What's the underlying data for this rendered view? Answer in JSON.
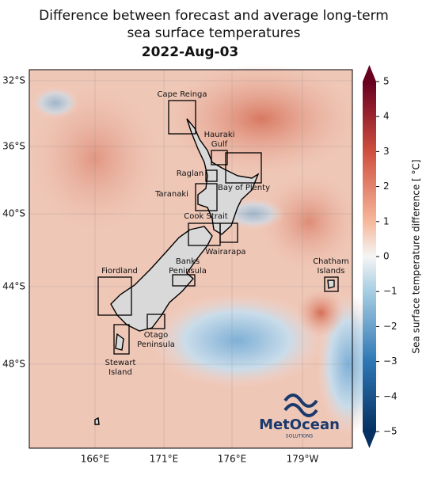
{
  "header": {
    "title_lines": [
      "Difference between forecast and average long-term",
      "sea surface temperatures"
    ],
    "date": "2022-Aug-03"
  },
  "map": {
    "lat_labels": [
      "32°S",
      "36°S",
      "40°S",
      "44°S",
      "48°S"
    ],
    "lon_labels": [
      "166°E",
      "171°E",
      "176°E",
      "179°W"
    ],
    "regions": [
      {
        "label": [
          "Cape Reinga"
        ]
      },
      {
        "label": [
          "Hauraki",
          "Gulf"
        ]
      },
      {
        "label": [
          "Bay of Plenty"
        ]
      },
      {
        "label": [
          "Raglan"
        ]
      },
      {
        "label": [
          "Taranaki"
        ]
      },
      {
        "label": [
          "Cook Strait"
        ]
      },
      {
        "label": [
          "Wairarapa"
        ]
      },
      {
        "label": [
          "Banks",
          "Peninsula"
        ]
      },
      {
        "label": [
          "Fiordland"
        ]
      },
      {
        "label": [
          "Chatham",
          "Islands"
        ]
      },
      {
        "label": [
          "Otago",
          "Peninsula"
        ]
      },
      {
        "label": [
          "Stewart",
          "Island"
        ]
      }
    ],
    "logo": {
      "name": "MetOcean",
      "sub": "SOLUTIONS"
    }
  },
  "colorbar": {
    "label": "Sea surface temperature difference [ °C]",
    "lim": [
      -5,
      5
    ],
    "ticks": [
      {
        "value": -5,
        "label": "−5"
      },
      {
        "value": -4,
        "label": "−4"
      },
      {
        "value": -3,
        "label": "−3"
      },
      {
        "value": -2,
        "label": "−2"
      },
      {
        "value": -1,
        "label": "−1"
      },
      0,
      1,
      2,
      3,
      4,
      5
    ]
  }
}
